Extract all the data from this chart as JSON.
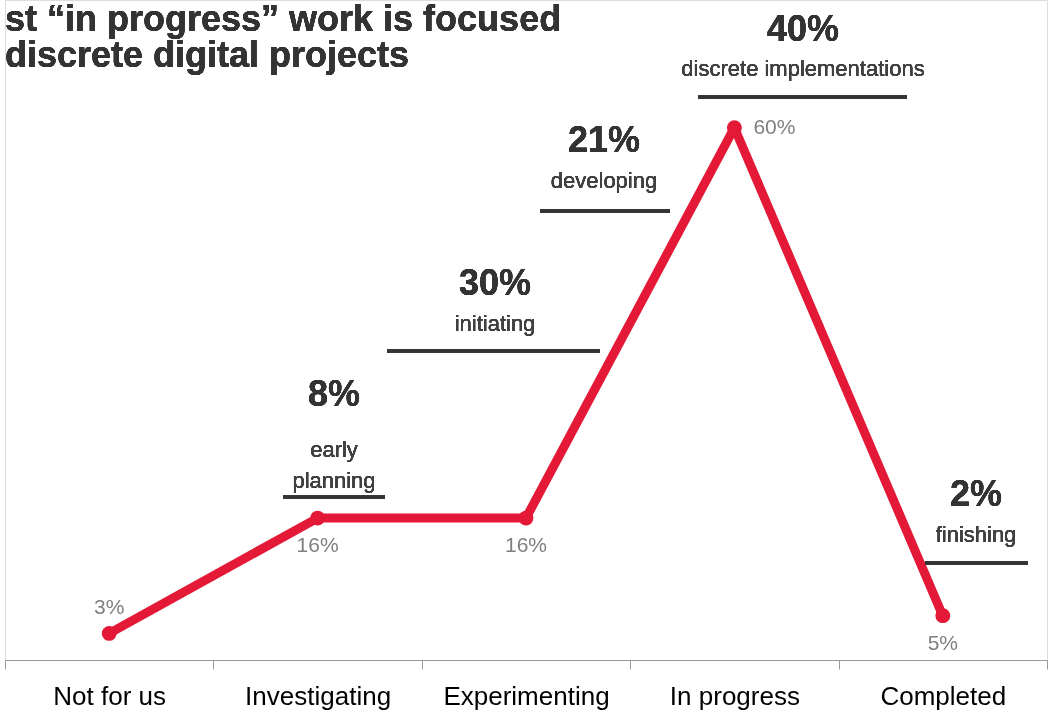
{
  "chart_data": {
    "type": "line",
    "title": "st “in progress” work is focused\ndiscrete digital projects",
    "categories": [
      "Not for us",
      "Investigating",
      "Experimenting",
      "In progress",
      "Completed"
    ],
    "series": [
      {
        "color": "#e31937",
        "values": [
          3,
          16,
          16,
          60,
          5
        ],
        "value_labels": [
          "3%",
          "16%",
          "16%",
          "60%",
          "5%"
        ]
      }
    ],
    "marker": "circle",
    "line_style": "solid",
    "annotations": [
      "8%",
      "early\nplanning",
      "30%",
      "initiating",
      "21%",
      "developing",
      "40%",
      "discrete implementations",
      "2%",
      "finishing"
    ]
  }
}
